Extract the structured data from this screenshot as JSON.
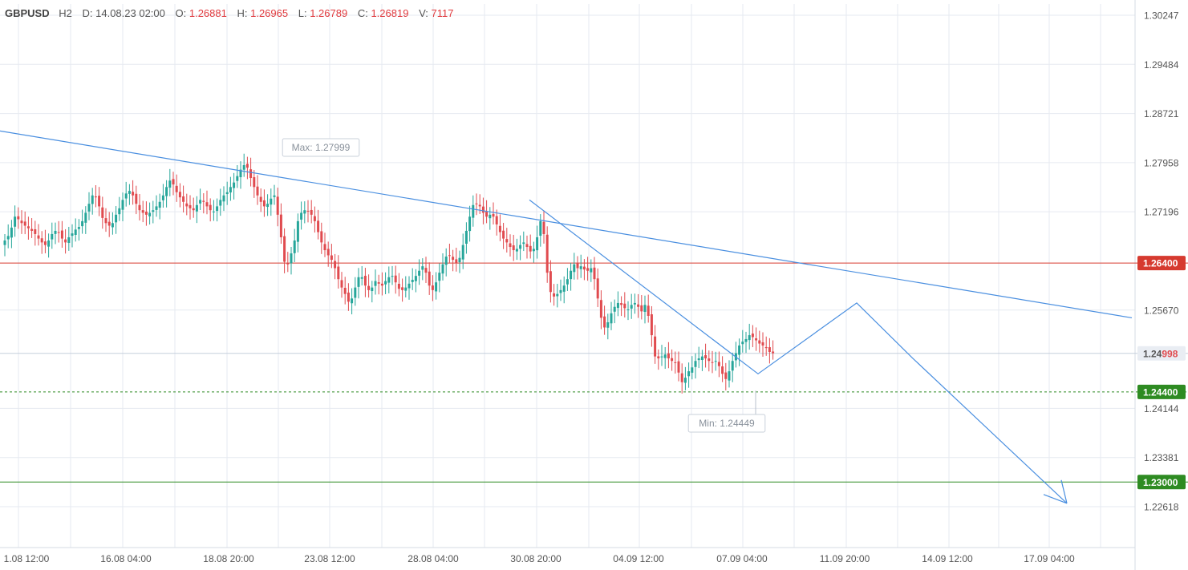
{
  "header": {
    "symbol": "GBPUSD",
    "timeframe": "H2",
    "date_label": "D:",
    "date": "14.08.23 02:00",
    "open_label": "O:",
    "open": "1.26881",
    "high_label": "H:",
    "high": "1.26965",
    "low_label": "L:",
    "low": "1.26789",
    "close_label": "C:",
    "close": "1.26819",
    "volume_label": "V:",
    "volume": "7117"
  },
  "colors": {
    "up": "#26a69a",
    "down": "#e04b4f",
    "trendline": "#4a8fe0",
    "resistance": "#d63a2f",
    "support_dotted": "#2e8b22",
    "target": "#2e8b22",
    "grid": "#e6eaf0",
    "axis_text": "#555555"
  },
  "chart_data": {
    "type": "candlestick",
    "symbol": "GBPUSD",
    "timeframe": "H2",
    "ylim": [
      1.2225,
      1.3035
    ],
    "y_ticks": [
      "1.30247",
      "1.29484",
      "1.28721",
      "1.27958",
      "1.27196",
      "1.26400",
      "1.25670",
      "1.24998",
      "1.24400",
      "1.24144",
      "1.23381",
      "1.23000",
      "1.22618"
    ],
    "x_ticks": [
      "1.08 12:00",
      "16.08 04:00",
      "18.08 20:00",
      "23.08 12:00",
      "28.08 04:00",
      "30.08 20:00",
      "04.09 12:00",
      "07.09 04:00",
      "11.09 20:00",
      "14.09 12:00",
      "17.09 04:00"
    ],
    "price_levels": [
      {
        "label": "1.26400",
        "value": 1.264,
        "style": "solid",
        "role": "resistance"
      },
      {
        "label": "1.24998",
        "value": 1.24998,
        "style": "solid",
        "role": "current"
      },
      {
        "label": "1.24400",
        "value": 1.244,
        "style": "dotted",
        "role": "support"
      },
      {
        "label": "1.23000",
        "value": 1.23,
        "style": "solid",
        "role": "target"
      }
    ],
    "annotations": [
      {
        "text": "Max: 1.27999",
        "value": 1.27999
      },
      {
        "text": "Min: 1.24449",
        "value": 1.24449
      }
    ],
    "trend_path": [
      1.2738,
      1.2468,
      1.2578,
      1.2492,
      1.2267
    ],
    "closes": [
      1.2675,
      1.2682,
      1.2695,
      1.2712,
      1.2708,
      1.2702,
      1.2698,
      1.2694,
      1.269,
      1.2685,
      1.2678,
      1.2672,
      1.2668,
      1.2675,
      1.2685,
      1.269,
      1.2688,
      1.2678,
      1.2672,
      1.268,
      1.2686,
      1.2692,
      1.2696,
      1.2705,
      1.2718,
      1.2732,
      1.2745,
      1.2742,
      1.2728,
      1.271,
      1.2702,
      1.2698,
      1.2702,
      1.2715,
      1.2725,
      1.2738,
      1.2748,
      1.2752,
      1.2745,
      1.2732,
      1.2722,
      1.2718,
      1.2715,
      1.2718,
      1.2722,
      1.2728,
      1.2735,
      1.2745,
      1.2758,
      1.2768,
      1.2762,
      1.275,
      1.2742,
      1.2735,
      1.2728,
      1.2725,
      1.2722,
      1.273,
      1.2738,
      1.2735,
      1.2728,
      1.2722,
      1.272,
      1.2728,
      1.2738,
      1.2745,
      1.275,
      1.2758,
      1.2765,
      1.2775,
      1.2785,
      1.2792,
      1.2788,
      1.2772,
      1.2758,
      1.2745,
      1.2735,
      1.2728,
      1.2732,
      1.274,
      1.2745,
      1.2715,
      1.268,
      1.2642,
      1.2638,
      1.2655,
      1.2675,
      1.2705,
      1.2718,
      1.2722,
      1.272,
      1.2715,
      1.2705,
      1.2688,
      1.2672,
      1.266,
      1.2652,
      1.2645,
      1.2632,
      1.2615,
      1.2602,
      1.2592,
      1.258,
      1.2585,
      1.2602,
      1.2618,
      1.2618,
      1.2605,
      1.2598,
      1.2602,
      1.2612,
      1.2608,
      1.2605,
      1.2612,
      1.2618,
      1.262,
      1.261,
      1.26,
      1.2598,
      1.2602,
      1.2608,
      1.2614,
      1.262,
      1.2628,
      1.2635,
      1.2625,
      1.2605,
      1.2598,
      1.261,
      1.2625,
      1.2638,
      1.265,
      1.2652,
      1.2645,
      1.264,
      1.2648,
      1.2668,
      1.269,
      1.2712,
      1.273,
      1.2732,
      1.2728,
      1.2718,
      1.2712,
      1.2715,
      1.2712,
      1.27,
      1.2688,
      1.2678,
      1.2672,
      1.2665,
      1.266,
      1.2662,
      1.2668,
      1.2672,
      1.2665,
      1.2658,
      1.2662,
      1.268,
      1.2705,
      1.2685,
      1.2625,
      1.2595,
      1.2588,
      1.2592,
      1.2598,
      1.2605,
      1.2615,
      1.2628,
      1.2638,
      1.2632,
      1.2635,
      1.263,
      1.2628,
      1.2632,
      1.2615,
      1.2585,
      1.2555,
      1.254,
      1.2548,
      1.2562,
      1.2572,
      1.2578,
      1.2575,
      1.257,
      1.2568,
      1.2575,
      1.2578,
      1.2572,
      1.2565,
      1.2575,
      1.2558,
      1.2528,
      1.2495,
      1.2492,
      1.2495,
      1.2498,
      1.2492,
      1.2488,
      1.2485,
      1.247,
      1.2455,
      1.2462,
      1.2472,
      1.2478,
      1.2488,
      1.2492,
      1.2495,
      1.2492,
      1.2488,
      1.2485,
      1.2488,
      1.248,
      1.2468,
      1.246,
      1.2472,
      1.2488,
      1.25,
      1.2512,
      1.2518,
      1.2522,
      1.2528,
      1.2525,
      1.252,
      1.2515,
      1.2512,
      1.2508,
      1.2502,
      1.25
    ]
  }
}
